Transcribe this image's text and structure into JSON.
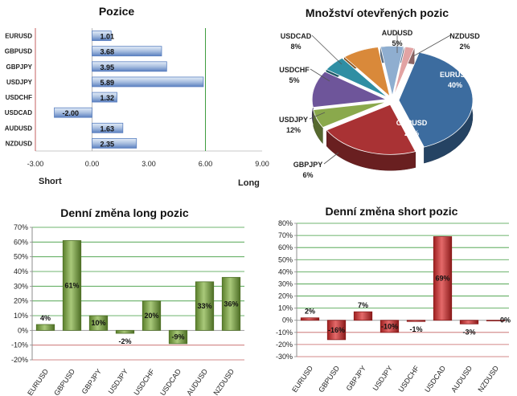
{
  "colors": {
    "bar_blue": "#a9bfe0",
    "bar_blue_dark": "#5b80c0",
    "bar_green": "#7fa348",
    "bar_green_dark": "#4e6f26",
    "bar_red": "#cc3b3b",
    "bar_red_dark": "#8a1a1a",
    "grid_green": "#3f9c3f",
    "grid_red": "#c46060",
    "pie": [
      "#3c6c9f",
      "#a93234",
      "#8aa94c",
      "#6e559a",
      "#2f8ea3",
      "#d9893a",
      "#8faed0",
      "#e2a3a3"
    ]
  },
  "chart_data": [
    {
      "type": "bar",
      "orientation": "horizontal",
      "title": "Pozice",
      "categories": [
        "EURUSD",
        "GBPUSD",
        "GBPJPY",
        "USDJPY",
        "USDCHF",
        "USDCAD",
        "AUDUSD",
        "NZDUSD"
      ],
      "values": [
        1.01,
        3.68,
        3.95,
        5.89,
        1.32,
        -2.0,
        1.63,
        2.35
      ],
      "value_labels": [
        "1.01",
        "3.68",
        "3.95",
        "5.89",
        "1.32",
        "-2.00",
        "1.63",
        "2.35"
      ],
      "xlim": [
        -3,
        9
      ],
      "xticks": [
        "-3.00",
        "0.00",
        "3.00",
        "6.00",
        "9.00"
      ],
      "xtick_values": [
        -3,
        0,
        3,
        6,
        9
      ],
      "left_label": "Short",
      "right_label": "Long"
    },
    {
      "type": "pie",
      "title": "Množství otevřených pozic",
      "labels": [
        "EURUSD",
        "GBPUSD",
        "GBPJPY",
        "USDJPY",
        "USDCHF",
        "USDCAD",
        "AUDUSD",
        "NZDUSD"
      ],
      "values": [
        40,
        22,
        6,
        12,
        5,
        8,
        5,
        2
      ],
      "value_labels": [
        "40%",
        "22%",
        "6%",
        "12%",
        "5%",
        "8%",
        "5%",
        "2%"
      ]
    },
    {
      "type": "bar",
      "title": "Denní změna long pozic",
      "categories": [
        "EURUSD",
        "GBPUSD",
        "GBPJPY",
        "USDJPY",
        "USDCHF",
        "USDCAD",
        "AUDUSD",
        "NZDUSD"
      ],
      "values": [
        4,
        61,
        10,
        -2,
        20,
        -9,
        33,
        36
      ],
      "value_labels": [
        "4%",
        "61%",
        "10%",
        "-2%",
        "20%",
        "-9%",
        "33%",
        "36%"
      ],
      "ylim": [
        -20,
        70
      ],
      "yticks": [
        "-20%",
        "-10%",
        "0%",
        "10%",
        "20%",
        "30%",
        "40%",
        "50%",
        "60%",
        "70%"
      ],
      "ytick_values": [
        -20,
        -10,
        0,
        10,
        20,
        30,
        40,
        50,
        60,
        70
      ]
    },
    {
      "type": "bar",
      "title": "Denní změna short pozic",
      "categories": [
        "EURUSD",
        "GBPUSD",
        "GBPJPY",
        "USDJPY",
        "USDCHF",
        "USDCAD",
        "AUDUSD",
        "NZDUSD"
      ],
      "values": [
        2,
        -16,
        7,
        -10,
        -1,
        69,
        -3,
        0
      ],
      "value_labels": [
        "2%",
        "-16%",
        "7%",
        "-10%",
        "-1%",
        "69%",
        "-3%",
        "0%"
      ],
      "ylim": [
        -30,
        80
      ],
      "yticks": [
        "-30%",
        "-20%",
        "-10%",
        "0%",
        "10%",
        "20%",
        "30%",
        "40%",
        "50%",
        "60%",
        "70%",
        "80%"
      ],
      "ytick_values": [
        -30,
        -20,
        -10,
        0,
        10,
        20,
        30,
        40,
        50,
        60,
        70,
        80
      ]
    }
  ]
}
